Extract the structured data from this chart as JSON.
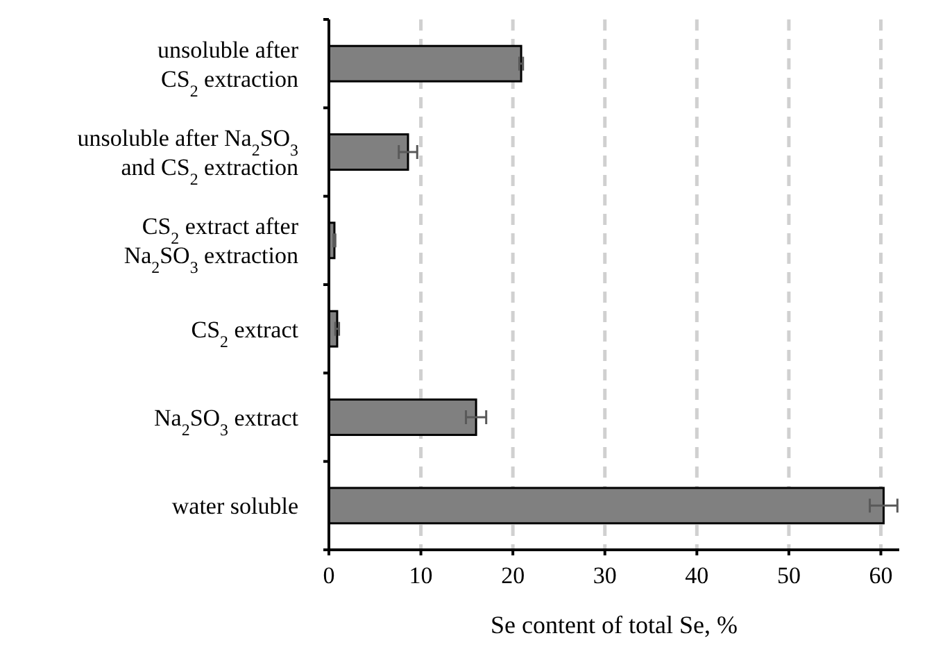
{
  "chart_data": {
    "type": "bar",
    "orientation": "horizontal",
    "xlabel": "Se content of total Se, %",
    "categories": [
      "unsoluble after\nCS$_{2}$ extraction",
      "unsoluble after Na$_{2}$SO$_{3}$\nand CS$_{2}$ extraction",
      "CS$_{2}$ extract after\nNa$_{2}$SO$_{3}$ extraction",
      "CS$_{2}$ extract",
      "Na$_{2}$SO$_{3}$ extract",
      "water soluble"
    ],
    "values": [
      20.9,
      8.6,
      0.6,
      0.9,
      16.0,
      60.3
    ],
    "errors": [
      0.2,
      1.0,
      0.1,
      0.2,
      1.1,
      1.5
    ],
    "color": "#808080",
    "xlim": [
      0,
      62
    ],
    "xticks": [
      0,
      10,
      20,
      30,
      40,
      50,
      60
    ],
    "grid": "x"
  }
}
